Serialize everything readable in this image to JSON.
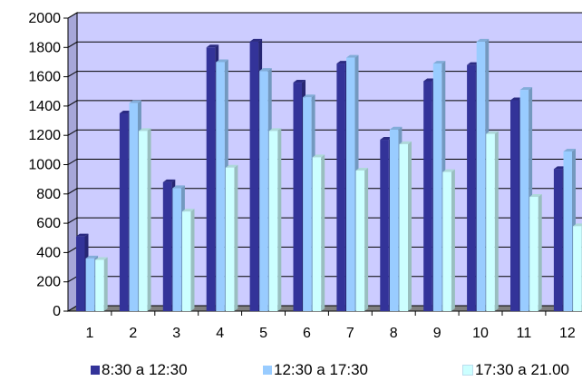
{
  "chart_data": {
    "type": "bar",
    "title": "",
    "xlabel": "",
    "ylabel": "",
    "categories": [
      "1",
      "2",
      "3",
      "4",
      "5",
      "6",
      "7",
      "8",
      "9",
      "10",
      "11",
      "12"
    ],
    "ylim": [
      0,
      2000
    ],
    "yticks": [
      "0",
      "200",
      "400",
      "600",
      "800",
      "1000",
      "1200",
      "1400",
      "1600",
      "1800",
      "2000"
    ],
    "grid": true,
    "legend_position": "bottom",
    "series": [
      {
        "name": "8:30 a 12:30",
        "color": "#333399",
        "values": [
          510,
          1350,
          880,
          1800,
          1840,
          1560,
          1690,
          1170,
          1570,
          1680,
          1440,
          970
        ]
      },
      {
        "name": "12:30 a 17:30",
        "color": "#99ccff",
        "values": [
          360,
          1420,
          840,
          1700,
          1640,
          1460,
          1730,
          1240,
          1690,
          1840,
          1510,
          1090
        ]
      },
      {
        "name": "17:30 a 21.00",
        "color": "#ccffff",
        "values": [
          350,
          1230,
          680,
          980,
          1230,
          1050,
          960,
          1140,
          950,
          1210,
          780,
          580
        ]
      }
    ]
  }
}
